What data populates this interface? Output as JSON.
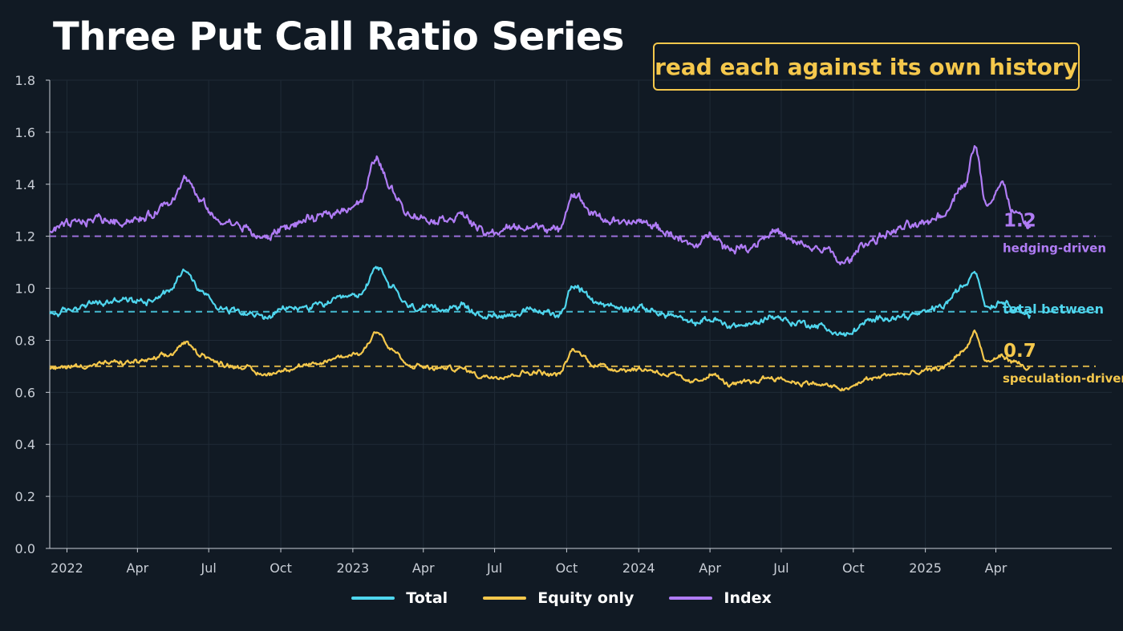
{
  "title": "Three Put Call Ratio Series",
  "callout": "read each against its own history",
  "colors": {
    "background": "#111a24",
    "total": "#4fd6ee",
    "equity": "#f5c84c",
    "index": "#b07cf5",
    "axis": "#c9ced6",
    "grid": "#1f2a36"
  },
  "chart_data": {
    "type": "line",
    "xlabel": "",
    "ylabel": "",
    "ylim": [
      0,
      1.8
    ],
    "yticks": [
      "0.0",
      "0.2",
      "0.4",
      "0.6",
      "0.8",
      "1.0",
      "1.2",
      "1.4",
      "1.6",
      "1.8"
    ],
    "xlim": [
      "2021-12-10",
      "2025-08-27"
    ],
    "xticks": [
      {
        "date": "2022-01-01",
        "label": "2022"
      },
      {
        "date": "2022-04-01",
        "label": "Apr"
      },
      {
        "date": "2022-07-01",
        "label": "Jul"
      },
      {
        "date": "2022-10-01",
        "label": "Oct"
      },
      {
        "date": "2023-01-01",
        "label": "2023"
      },
      {
        "date": "2023-04-01",
        "label": "Apr"
      },
      {
        "date": "2023-07-01",
        "label": "Jul"
      },
      {
        "date": "2023-10-01",
        "label": "Oct"
      },
      {
        "date": "2024-01-01",
        "label": "2024"
      },
      {
        "date": "2024-04-01",
        "label": "Apr"
      },
      {
        "date": "2024-07-01",
        "label": "Jul"
      },
      {
        "date": "2024-10-01",
        "label": "Oct"
      },
      {
        "date": "2025-01-01",
        "label": "2025"
      },
      {
        "date": "2025-04-01",
        "label": "Apr"
      }
    ],
    "grid": true,
    "legend_position": "bottom-center",
    "series": [
      {
        "name": "Total",
        "color": "#4fd6ee",
        "baseline": 0.91,
        "points": [
          [
            "2021-12-10",
            0.9
          ],
          [
            "2022-01-10",
            0.92
          ],
          [
            "2022-02-10",
            0.94
          ],
          [
            "2022-03-10",
            0.95
          ],
          [
            "2022-04-10",
            0.95
          ],
          [
            "2022-05-10",
            0.99
          ],
          [
            "2022-06-01",
            1.07
          ],
          [
            "2022-06-20",
            0.99
          ],
          [
            "2022-07-15",
            0.93
          ],
          [
            "2022-08-10",
            0.92
          ],
          [
            "2022-09-10",
            0.89
          ],
          [
            "2022-10-10",
            0.92
          ],
          [
            "2022-11-10",
            0.93
          ],
          [
            "2022-12-10",
            0.95
          ],
          [
            "2023-01-10",
            0.97
          ],
          [
            "2023-02-01",
            1.08
          ],
          [
            "2023-02-20",
            1.0
          ],
          [
            "2023-03-15",
            0.93
          ],
          [
            "2023-04-15",
            0.92
          ],
          [
            "2023-05-20",
            0.93
          ],
          [
            "2023-06-20",
            0.89
          ],
          [
            "2023-07-20",
            0.9
          ],
          [
            "2023-08-20",
            0.91
          ],
          [
            "2023-09-20",
            0.9
          ],
          [
            "2023-10-10",
            1.01
          ],
          [
            "2023-11-05",
            0.95
          ],
          [
            "2023-12-10",
            0.92
          ],
          [
            "2024-01-10",
            0.92
          ],
          [
            "2024-02-10",
            0.9
          ],
          [
            "2024-03-10",
            0.86
          ],
          [
            "2024-04-05",
            0.88
          ],
          [
            "2024-04-25",
            0.86
          ],
          [
            "2024-05-20",
            0.86
          ],
          [
            "2024-06-20",
            0.89
          ],
          [
            "2024-07-20",
            0.87
          ],
          [
            "2024-08-20",
            0.85
          ],
          [
            "2024-09-20",
            0.82
          ],
          [
            "2024-10-20",
            0.87
          ],
          [
            "2024-11-20",
            0.89
          ],
          [
            "2024-12-20",
            0.9
          ],
          [
            "2025-01-20",
            0.93
          ],
          [
            "2025-02-20",
            1.01
          ],
          [
            "2025-03-05",
            1.07
          ],
          [
            "2025-03-20",
            0.93
          ],
          [
            "2025-04-10",
            0.95
          ],
          [
            "2025-04-25",
            0.93
          ],
          [
            "2025-05-15",
            0.89
          ]
        ],
        "label_end": "",
        "label_desc": "total between"
      },
      {
        "name": "Equity only",
        "color": "#f5c84c",
        "baseline": 0.7,
        "points": [
          [
            "2021-12-10",
            0.69
          ],
          [
            "2022-01-10",
            0.7
          ],
          [
            "2022-02-10",
            0.71
          ],
          [
            "2022-03-10",
            0.71
          ],
          [
            "2022-04-10",
            0.72
          ],
          [
            "2022-05-10",
            0.74
          ],
          [
            "2022-06-01",
            0.79
          ],
          [
            "2022-06-20",
            0.75
          ],
          [
            "2022-07-15",
            0.71
          ],
          [
            "2022-08-10",
            0.7
          ],
          [
            "2022-09-10",
            0.67
          ],
          [
            "2022-10-10",
            0.69
          ],
          [
            "2022-11-10",
            0.7
          ],
          [
            "2022-12-10",
            0.73
          ],
          [
            "2023-01-10",
            0.75
          ],
          [
            "2023-02-01",
            0.84
          ],
          [
            "2023-02-20",
            0.76
          ],
          [
            "2023-03-15",
            0.7
          ],
          [
            "2023-04-15",
            0.69
          ],
          [
            "2023-05-20",
            0.69
          ],
          [
            "2023-06-20",
            0.66
          ],
          [
            "2023-07-20",
            0.67
          ],
          [
            "2023-08-20",
            0.68
          ],
          [
            "2023-09-20",
            0.67
          ],
          [
            "2023-10-10",
            0.76
          ],
          [
            "2023-11-05",
            0.71
          ],
          [
            "2023-12-10",
            0.69
          ],
          [
            "2024-01-10",
            0.69
          ],
          [
            "2024-02-10",
            0.67
          ],
          [
            "2024-03-10",
            0.64
          ],
          [
            "2024-04-05",
            0.67
          ],
          [
            "2024-04-25",
            0.63
          ],
          [
            "2024-05-20",
            0.64
          ],
          [
            "2024-06-20",
            0.66
          ],
          [
            "2024-07-20",
            0.64
          ],
          [
            "2024-08-20",
            0.63
          ],
          [
            "2024-09-20",
            0.61
          ],
          [
            "2024-10-20",
            0.65
          ],
          [
            "2024-11-20",
            0.67
          ],
          [
            "2024-12-20",
            0.67
          ],
          [
            "2025-01-20",
            0.69
          ],
          [
            "2025-02-20",
            0.76
          ],
          [
            "2025-03-05",
            0.83
          ],
          [
            "2025-03-20",
            0.71
          ],
          [
            "2025-04-10",
            0.74
          ],
          [
            "2025-04-25",
            0.71
          ],
          [
            "2025-05-15",
            0.69
          ]
        ],
        "label_end": "0.7",
        "label_desc": "speculation-driven"
      },
      {
        "name": "Index",
        "color": "#b07cf5",
        "baseline": 1.2,
        "points": [
          [
            "2021-12-10",
            1.22
          ],
          [
            "2022-01-10",
            1.25
          ],
          [
            "2022-02-10",
            1.27
          ],
          [
            "2022-03-10",
            1.26
          ],
          [
            "2022-04-10",
            1.27
          ],
          [
            "2022-05-10",
            1.32
          ],
          [
            "2022-06-01",
            1.42
          ],
          [
            "2022-06-20",
            1.33
          ],
          [
            "2022-07-15",
            1.25
          ],
          [
            "2022-08-10",
            1.24
          ],
          [
            "2022-09-10",
            1.19
          ],
          [
            "2022-10-10",
            1.24
          ],
          [
            "2022-11-10",
            1.26
          ],
          [
            "2022-12-10",
            1.3
          ],
          [
            "2023-01-10",
            1.33
          ],
          [
            "2023-02-01",
            1.5
          ],
          [
            "2023-02-20",
            1.38
          ],
          [
            "2023-03-15",
            1.28
          ],
          [
            "2023-04-15",
            1.26
          ],
          [
            "2023-05-20",
            1.28
          ],
          [
            "2023-06-20",
            1.21
          ],
          [
            "2023-07-20",
            1.23
          ],
          [
            "2023-08-20",
            1.24
          ],
          [
            "2023-09-20",
            1.22
          ],
          [
            "2023-10-10",
            1.36
          ],
          [
            "2023-11-05",
            1.28
          ],
          [
            "2023-12-10",
            1.25
          ],
          [
            "2024-01-10",
            1.25
          ],
          [
            "2024-02-10",
            1.21
          ],
          [
            "2024-03-10",
            1.16
          ],
          [
            "2024-04-05",
            1.21
          ],
          [
            "2024-04-25",
            1.15
          ],
          [
            "2024-05-20",
            1.16
          ],
          [
            "2024-06-20",
            1.22
          ],
          [
            "2024-07-20",
            1.17
          ],
          [
            "2024-08-20",
            1.15
          ],
          [
            "2024-09-20",
            1.1
          ],
          [
            "2024-10-20",
            1.18
          ],
          [
            "2024-11-20",
            1.22
          ],
          [
            "2024-12-20",
            1.24
          ],
          [
            "2025-01-20",
            1.28
          ],
          [
            "2025-02-20",
            1.4
          ],
          [
            "2025-03-05",
            1.54
          ],
          [
            "2025-03-20",
            1.32
          ],
          [
            "2025-04-10",
            1.39
          ],
          [
            "2025-04-25",
            1.29
          ],
          [
            "2025-05-15",
            1.23
          ]
        ],
        "label_end": "1.2",
        "label_desc": "hedging-driven"
      }
    ]
  },
  "legend": [
    {
      "label": "Total",
      "color": "#4fd6ee"
    },
    {
      "label": "Equity only",
      "color": "#f5c84c"
    },
    {
      "label": "Index",
      "color": "#b07cf5"
    }
  ]
}
